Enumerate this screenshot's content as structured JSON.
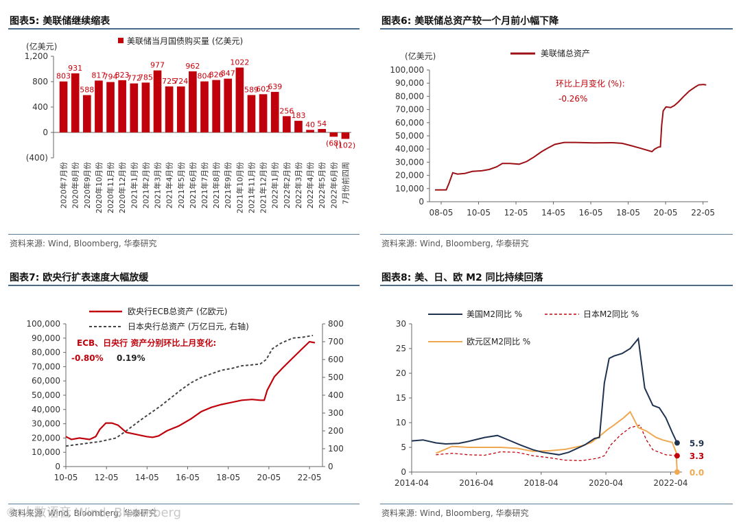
{
  "panels": {
    "fig5": {
      "title": "图表5:  美联储继续缩表",
      "source": "资料来源: Wind, Bloomberg, 华泰研究"
    },
    "fig6": {
      "title": "图表6:  美联储总资产较一个月前小幅下降",
      "source": "资料来源: Wind, Bloomberg, 华泰研究"
    },
    "fig7": {
      "title": "图表7:  欧央行扩表速度大幅放缓",
      "source": "资料来源: Wind, Bloomberg, 华泰研究"
    },
    "fig8": {
      "title": "图表8:  美、日、欧 M2 同比持续回落",
      "source": "资料来源: Wind, Bloomberg, 华泰研究"
    }
  },
  "colors": {
    "red": "#c0000a",
    "dark_red": "#9c1015",
    "navy": "#1e3250",
    "orange": "#f0a850",
    "grey_dash": "#444444",
    "rule": "#5a7a9a"
  },
  "watermark": "© 人数语音 Wind, Bloomberg",
  "chart_data": [
    {
      "id": "fig5",
      "type": "bar",
      "title": "美联储继续缩表",
      "ylabel": "(亿美元)",
      "legend": "美联储当月国债购买量 (亿美元)",
      "ylim": [
        -400,
        1200
      ],
      "yticks": [
        -400,
        0,
        400,
        800,
        1200
      ],
      "ytick_labels": [
        "(400)",
        "0",
        "400",
        "800",
        "1,200"
      ],
      "categories": [
        "2020年7月份",
        "2020年8月份",
        "2020年9月份",
        "2020年10月份",
        "2020年11月份",
        "2020年12月份",
        "2021年1月份",
        "2021年2月份",
        "2021年3月份",
        "2021年4月份",
        "2021年5月份",
        "2021年6月份",
        "2021年7月份",
        "2021年8月份",
        "2021年9月份",
        "2021年10月份",
        "2021年11月份",
        "2021年12月份",
        "2022年1月份",
        "2022年2月份",
        "2022年3月份",
        "2022年4月份",
        "2022年5月份",
        "2022年6月份",
        "7月份前四周"
      ],
      "values": [
        803,
        931,
        588,
        817,
        794,
        823,
        772,
        785,
        977,
        725,
        724,
        962,
        804,
        826,
        847,
        1022,
        589,
        602,
        639,
        256,
        183,
        40,
        54,
        -68,
        -102
      ],
      "data_labels": [
        "803",
        "931",
        "588",
        "817",
        "794",
        "823",
        "772",
        "785",
        "977",
        "725",
        "724",
        "962",
        "804",
        "826",
        "847",
        "1022",
        "589",
        "602",
        "639",
        "256",
        "183",
        "40",
        "54",
        "(68)",
        "(102)"
      ]
    },
    {
      "id": "fig6",
      "type": "line",
      "title": "美联储总资产较一个月前小幅下降",
      "ylabel": "(亿美元)",
      "ylim": [
        0,
        100000
      ],
      "yticks": [
        0,
        10000,
        20000,
        30000,
        40000,
        50000,
        60000,
        70000,
        80000,
        90000,
        100000
      ],
      "ytick_labels": [
        "0",
        "10,000",
        "20,000",
        "30,000",
        "40,000",
        "50,000",
        "60,000",
        "70,000",
        "80,000",
        "90,000",
        "100,000"
      ],
      "xlim": [
        2008.0,
        2022.6
      ],
      "xticks": [
        2008.33,
        2010.33,
        2012.33,
        2014.33,
        2016.33,
        2018.33,
        2020.33,
        2022.33
      ],
      "xtick_labels": [
        "08-05",
        "10-05",
        "12-05",
        "14-05",
        "16-05",
        "18-05",
        "20-05",
        "22-05"
      ],
      "annotation_title": "环比上月变化 (%):",
      "annotation_value": "-0.26%",
      "series": [
        {
          "name": "美联储总资产",
          "x": [
            2008.0,
            2008.6,
            2008.75,
            2008.95,
            2009.2,
            2009.6,
            2010.0,
            2010.5,
            2010.9,
            2011.3,
            2011.6,
            2012.0,
            2012.5,
            2012.9,
            2013.3,
            2013.7,
            2014.0,
            2014.4,
            2014.9,
            2015.5,
            2016.5,
            2017.5,
            2018.0,
            2018.5,
            2019.0,
            2019.6,
            2019.75,
            2019.95,
            2020.05,
            2020.12,
            2020.2,
            2020.35,
            2020.6,
            2020.8,
            2021.0,
            2021.3,
            2021.6,
            2021.9,
            2022.1,
            2022.35,
            2022.5
          ],
          "y": [
            9000,
            9000,
            14000,
            22000,
            21000,
            21500,
            23000,
            23500,
            24500,
            26500,
            29000,
            29000,
            28500,
            30500,
            34000,
            38000,
            40500,
            43500,
            45000,
            45000,
            44700,
            44800,
            44300,
            42500,
            40500,
            38000,
            40000,
            41500,
            41600,
            58000,
            69000,
            72000,
            71500,
            73000,
            75500,
            80000,
            84000,
            87000,
            88700,
            89000,
            88700
          ]
        }
      ]
    },
    {
      "id": "fig7",
      "type": "line",
      "title": "欧央行扩表速度大幅放缓",
      "ylim_left": [
        0,
        100000
      ],
      "yticks_left_labels": [
        "0",
        "10,000",
        "20,000",
        "30,000",
        "40,000",
        "50,000",
        "60,000",
        "70,000",
        "80,000",
        "90,000",
        "100,000"
      ],
      "ylim_right": [
        0,
        800
      ],
      "yticks_right_labels": [
        "0",
        "100",
        "200",
        "300",
        "400",
        "500",
        "600",
        "700",
        "800"
      ],
      "xlim": [
        2010.33,
        2022.7
      ],
      "xticks": [
        2010.33,
        2012.33,
        2014.33,
        2016.33,
        2018.33,
        2020.33,
        2022.33
      ],
      "xtick_labels": [
        "10-05",
        "12-05",
        "14-05",
        "16-05",
        "18-05",
        "20-05",
        "22-05"
      ],
      "annotation_title": "ECB、日央行 资产分别环比上月变化:",
      "annotation_ecb": "-0.80%",
      "annotation_boj": "0.19%",
      "series": [
        {
          "name": "欧央行ECB总资产 (亿欧元)",
          "axis": "left",
          "x": [
            2010.33,
            2010.6,
            2011.0,
            2011.5,
            2011.8,
            2012.0,
            2012.3,
            2012.6,
            2012.9,
            2013.3,
            2013.8,
            2014.3,
            2014.6,
            2014.9,
            2015.3,
            2015.9,
            2016.5,
            2017.0,
            2017.5,
            2018.0,
            2018.5,
            2019.0,
            2019.5,
            2019.9,
            2020.1,
            2020.25,
            2020.6,
            2021.0,
            2021.5,
            2022.0,
            2022.33,
            2022.6
          ],
          "y": [
            21000,
            19000,
            20000,
            19000,
            21000,
            26000,
            30500,
            30500,
            29000,
            24000,
            22500,
            21000,
            20500,
            21500,
            25000,
            28500,
            33500,
            38500,
            41500,
            43500,
            45000,
            46500,
            47000,
            46500,
            46500,
            53500,
            63000,
            69000,
            76000,
            83000,
            87500,
            86800
          ]
        },
        {
          "name": "日本央行总资产 (万亿日元, 右轴)",
          "axis": "right",
          "x": [
            2010.33,
            2011.0,
            2012.0,
            2012.8,
            2013.3,
            2014.0,
            2015.0,
            2016.0,
            2016.5,
            2017.0,
            2017.5,
            2018.0,
            2018.5,
            2019.0,
            2019.5,
            2019.9,
            2020.2,
            2020.5,
            2020.9,
            2021.5,
            2022.0,
            2022.5
          ],
          "y": [
            115,
            125,
            140,
            160,
            200,
            260,
            340,
            430,
            470,
            500,
            520,
            540,
            550,
            565,
            570,
            575,
            600,
            660,
            690,
            720,
            725,
            735
          ]
        }
      ]
    },
    {
      "id": "fig8",
      "type": "line",
      "title": "美、日、欧 M2 同比持续回落",
      "ylim": [
        0,
        30
      ],
      "yticks": [
        0,
        5,
        10,
        15,
        20,
        25,
        30
      ],
      "ytick_labels": [
        "0",
        "5",
        "10",
        "15",
        "20",
        "25",
        "30"
      ],
      "xlim": [
        2014.25,
        2022.6
      ],
      "xticks": [
        2014.25,
        2016.25,
        2018.25,
        2020.25,
        2022.25
      ],
      "xtick_labels": [
        "2014-04",
        "2016-04",
        "2018-04",
        "2020-04",
        "2022-04"
      ],
      "end_labels": [
        "5.9",
        "3.3",
        "0.0"
      ],
      "series": [
        {
          "name": "美国M2同比 %",
          "style": "solid",
          "x": [
            2014.25,
            2014.6,
            2015.0,
            2015.3,
            2015.7,
            2016.0,
            2016.5,
            2016.9,
            2017.2,
            2017.6,
            2018.0,
            2018.3,
            2018.8,
            2019.1,
            2019.6,
            2019.9,
            2020.05,
            2020.2,
            2020.35,
            2020.5,
            2020.75,
            2021.0,
            2021.25,
            2021.45,
            2021.7,
            2021.9,
            2022.1,
            2022.3,
            2022.45
          ],
          "y": [
            6.3,
            6.5,
            5.9,
            5.7,
            5.8,
            6.2,
            7.0,
            7.4,
            6.6,
            5.5,
            4.5,
            4.0,
            3.5,
            4.0,
            5.5,
            6.8,
            7.0,
            18.0,
            23.0,
            23.5,
            24.0,
            25.0,
            27.0,
            17.0,
            13.5,
            13.0,
            11.0,
            8.0,
            5.9
          ]
        },
        {
          "name": "日本M2同比 %",
          "style": "dashed",
          "x": [
            2015.0,
            2015.5,
            2016.0,
            2016.5,
            2017.0,
            2017.5,
            2018.0,
            2018.5,
            2019.0,
            2019.5,
            2020.0,
            2020.2,
            2020.4,
            2020.7,
            2021.0,
            2021.3,
            2021.5,
            2021.7,
            2021.9,
            2022.1,
            2022.45
          ],
          "y": [
            3.5,
            3.8,
            3.5,
            3.4,
            4.1,
            4.0,
            3.3,
            2.9,
            2.4,
            2.3,
            2.8,
            3.3,
            5.5,
            7.5,
            9.0,
            9.5,
            6.5,
            4.5,
            4.0,
            3.5,
            3.3
          ]
        },
        {
          "name": "欧元区M2同比 %",
          "style": "solid",
          "x": [
            2015.0,
            2015.5,
            2016.0,
            2016.5,
            2017.0,
            2017.5,
            2018.0,
            2018.5,
            2019.0,
            2019.5,
            2019.8,
            2020.1,
            2020.3,
            2020.5,
            2020.8,
            2021.0,
            2021.25,
            2021.5,
            2021.8,
            2022.0,
            2022.3,
            2022.42,
            2022.45
          ],
          "y": [
            3.8,
            5.2,
            5.0,
            5.0,
            5.0,
            4.8,
            4.2,
            4.3,
            4.6,
            5.3,
            6.0,
            7.5,
            8.6,
            9.5,
            11.0,
            12.2,
            9.0,
            8.3,
            7.0,
            6.5,
            6.0,
            4.0,
            0.0
          ]
        }
      ]
    }
  ]
}
